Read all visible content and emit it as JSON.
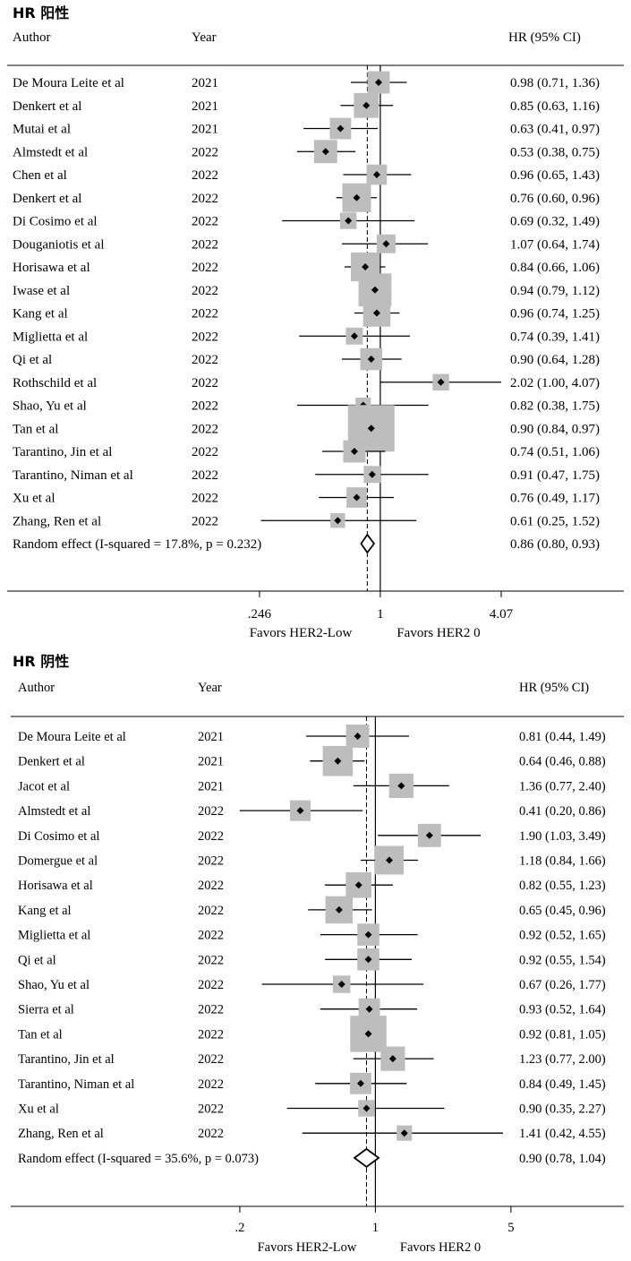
{
  "chart_data": [
    {
      "type": "forest",
      "title": "HR 阳性",
      "columns": {
        "author": "Author",
        "year": "Year",
        "estimate": "HR (95% CI)"
      },
      "scale": "log",
      "reference_line": 1,
      "overall_line": 0.86,
      "ticks": [
        0.246,
        1,
        4.07
      ],
      "tick_labels": [
        ".246",
        "1",
        "4.07"
      ],
      "favors_left": "Favors HER2-Low",
      "favors_right": "Favors HER2 0",
      "studies": [
        {
          "author": "De Moura Leite et al",
          "year": "2021",
          "hr": 0.98,
          "lo": 0.71,
          "hi": 1.36,
          "weight": 2.3,
          "label": "0.98 (0.71, 1.36)"
        },
        {
          "author": "Denkert et al",
          "year": "2021",
          "hr": 0.85,
          "lo": 0.63,
          "hi": 1.16,
          "weight": 3.2,
          "label": "0.85 (0.63, 1.16)"
        },
        {
          "author": "Mutai et al",
          "year": "2021",
          "hr": 0.63,
          "lo": 0.41,
          "hi": 0.97,
          "weight": 2.0,
          "label": "0.63 (0.41, 0.97)"
        },
        {
          "author": "Almstedt et al",
          "year": "2022",
          "hr": 0.53,
          "lo": 0.38,
          "hi": 0.75,
          "weight": 2.6,
          "label": "0.53 (0.38, 0.75)"
        },
        {
          "author": "Chen et al",
          "year": "2022",
          "hr": 0.96,
          "lo": 0.65,
          "hi": 1.43,
          "weight": 1.7,
          "label": "0.96 (0.65, 1.43)"
        },
        {
          "author": "Denkert et al",
          "year": "2022",
          "hr": 0.76,
          "lo": 0.6,
          "hi": 0.96,
          "weight": 4.8,
          "label": "0.76 (0.60, 0.96)"
        },
        {
          "author": "Di Cosimo et al",
          "year": "2022",
          "hr": 0.69,
          "lo": 0.32,
          "hi": 1.49,
          "weight": 0.8,
          "label": "0.69 (0.32, 1.49)"
        },
        {
          "author": "Douganiotis et al",
          "year": "2022",
          "hr": 1.07,
          "lo": 0.64,
          "hi": 1.74,
          "weight": 1.3,
          "label": "1.07 (0.64, 1.74)"
        },
        {
          "author": "Horisawa et al",
          "year": "2022",
          "hr": 0.84,
          "lo": 0.66,
          "hi": 1.06,
          "weight": 4.9,
          "label": "0.84 (0.66, 1.06)"
        },
        {
          "author": "Iwase et al",
          "year": "2022",
          "hr": 0.94,
          "lo": 0.79,
          "hi": 1.12,
          "weight": 7.0,
          "label": "0.94 (0.79, 1.12)"
        },
        {
          "author": "Kang et al",
          "year": "2022",
          "hr": 0.96,
          "lo": 0.74,
          "hi": 1.25,
          "weight": 4.2,
          "label": "0.96 (0.74, 1.25)"
        },
        {
          "author": "Miglietta et al",
          "year": "2022",
          "hr": 0.74,
          "lo": 0.39,
          "hi": 1.41,
          "weight": 0.9,
          "label": "0.74 (0.39, 1.41)"
        },
        {
          "author": "Qi et al",
          "year": "2022",
          "hr": 0.9,
          "lo": 0.64,
          "hi": 1.28,
          "weight": 2.2,
          "label": "0.90 (0.64, 1.28)"
        },
        {
          "author": "Rothschild et al",
          "year": "2022",
          "hr": 2.02,
          "lo": 1.0,
          "hi": 4.07,
          "weight": 0.8,
          "label": "2.02 (1.00, 4.07)"
        },
        {
          "author": "Shao, Yu et al",
          "year": "2022",
          "hr": 0.82,
          "lo": 0.38,
          "hi": 1.75,
          "weight": 0.6,
          "label": "0.82 (0.38, 1.75)"
        },
        {
          "author": "Tan et al",
          "year": "2022",
          "hr": 0.9,
          "lo": 0.84,
          "hi": 0.97,
          "weight": 18.0,
          "label": "0.90 (0.84, 0.97)"
        },
        {
          "author": "Tarantino, Jin et al",
          "year": "2022",
          "hr": 0.74,
          "lo": 0.51,
          "hi": 1.06,
          "weight": 2.3,
          "label": "0.74 (0.51, 1.06)"
        },
        {
          "author": "Tarantino, Niman et al",
          "year": "2022",
          "hr": 0.91,
          "lo": 0.47,
          "hi": 1.75,
          "weight": 0.9,
          "label": "0.91 (0.47, 1.75)"
        },
        {
          "author": "Xu et al",
          "year": "2022",
          "hr": 0.76,
          "lo": 0.49,
          "hi": 1.17,
          "weight": 1.7,
          "label": "0.76 (0.49, 1.17)"
        },
        {
          "author": "Zhang, Ren et al",
          "year": "2022",
          "hr": 0.61,
          "lo": 0.25,
          "hi": 1.52,
          "weight": 0.5,
          "label": "0.61 (0.25, 1.52)"
        }
      ],
      "overall": {
        "label_text": "Random effect (I-squared = 17.8%, p = 0.232)",
        "hr": 0.86,
        "lo": 0.8,
        "hi": 0.93,
        "label": "0.86 (0.80, 0.93)"
      }
    },
    {
      "type": "forest",
      "title": "HR 阴性",
      "columns": {
        "author": "Author",
        "year": "Year",
        "estimate": "HR (95% CI)"
      },
      "scale": "log",
      "reference_line": 1,
      "overall_line": 0.9,
      "ticks": [
        0.2,
        1,
        5
      ],
      "tick_labels": [
        ".2",
        "1",
        "5"
      ],
      "favors_left": "Favors HER2-Low",
      "favors_right": "Favors HER2 0",
      "studies": [
        {
          "author": "De Moura Leite et al",
          "year": "2021",
          "hr": 0.81,
          "lo": 0.44,
          "hi": 1.49,
          "weight": 2.6,
          "label": "0.81 (0.44, 1.49)"
        },
        {
          "author": "Denkert et al",
          "year": "2021",
          "hr": 0.64,
          "lo": 0.46,
          "hi": 0.88,
          "weight": 5.5,
          "label": "0.64 (0.46, 0.88)"
        },
        {
          "author": "Jacot et al",
          "year": "2021",
          "hr": 1.36,
          "lo": 0.77,
          "hi": 2.4,
          "weight": 3.0,
          "label": "1.36 (0.77, 2.40)"
        },
        {
          "author": "Almstedt et al",
          "year": "2022",
          "hr": 0.41,
          "lo": 0.2,
          "hi": 0.86,
          "weight": 1.8,
          "label": "0.41 (0.20, 0.86)"
        },
        {
          "author": "Di Cosimo et al",
          "year": "2022",
          "hr": 1.9,
          "lo": 1.03,
          "hi": 3.49,
          "weight": 2.6,
          "label": "1.90 (1.03, 3.49)"
        },
        {
          "author": "Domergue et al",
          "year": "2022",
          "hr": 1.18,
          "lo": 0.84,
          "hi": 1.66,
          "weight": 4.8,
          "label": "1.18 (0.84, 1.66)"
        },
        {
          "author": "Horisawa et al",
          "year": "2022",
          "hr": 0.82,
          "lo": 0.55,
          "hi": 1.23,
          "weight": 3.5,
          "label": "0.82 (0.55, 1.23)"
        },
        {
          "author": "Kang et al",
          "year": "2022",
          "hr": 0.65,
          "lo": 0.45,
          "hi": 0.96,
          "weight": 4.2,
          "label": "0.65 (0.45, 0.96)"
        },
        {
          "author": "Miglietta et al",
          "year": "2022",
          "hr": 0.92,
          "lo": 0.52,
          "hi": 1.65,
          "weight": 2.2,
          "label": "0.92 (0.52, 1.65)"
        },
        {
          "author": "Qi et al",
          "year": "2022",
          "hr": 0.92,
          "lo": 0.55,
          "hi": 1.54,
          "weight": 2.2,
          "label": "0.92 (0.55, 1.54)"
        },
        {
          "author": "Shao, Yu et al",
          "year": "2022",
          "hr": 0.67,
          "lo": 0.26,
          "hi": 1.77,
          "weight": 1.0,
          "label": "0.67 (0.26, 1.77)"
        },
        {
          "author": "Sierra et al",
          "year": "2022",
          "hr": 0.93,
          "lo": 0.52,
          "hi": 1.64,
          "weight": 2.0,
          "label": "0.93 (0.52, 1.64)"
        },
        {
          "author": "Tan et al",
          "year": "2022",
          "hr": 0.92,
          "lo": 0.81,
          "hi": 1.05,
          "weight": 9.0,
          "label": "0.92 (0.81, 1.05)"
        },
        {
          "author": "Tarantino, Jin et al",
          "year": "2022",
          "hr": 1.23,
          "lo": 0.77,
          "hi": 2.0,
          "weight": 3.0,
          "label": "1.23 (0.77, 2.00)"
        },
        {
          "author": "Tarantino, Niman et al",
          "year": "2022",
          "hr": 0.84,
          "lo": 0.49,
          "hi": 1.45,
          "weight": 2.0,
          "label": "0.84 (0.49, 1.45)"
        },
        {
          "author": "Xu et al",
          "year": "2022",
          "hr": 0.9,
          "lo": 0.35,
          "hi": 2.27,
          "weight": 0.8,
          "label": "0.90 (0.35, 2.27)"
        },
        {
          "author": "Zhang, Ren et al",
          "year": "2022",
          "hr": 1.41,
          "lo": 0.42,
          "hi": 4.55,
          "weight": 0.6,
          "label": "1.41 (0.42, 4.55)"
        }
      ],
      "overall": {
        "label_text": "Random effect (I-squared = 35.6%, p = 0.073)",
        "hr": 0.9,
        "lo": 0.78,
        "hi": 1.04,
        "label": "0.90 (0.78, 1.04)"
      }
    }
  ],
  "colors": {
    "box": "#bdbdbd",
    "line": "#000000",
    "text": "#000000",
    "background": "#ffffff"
  }
}
